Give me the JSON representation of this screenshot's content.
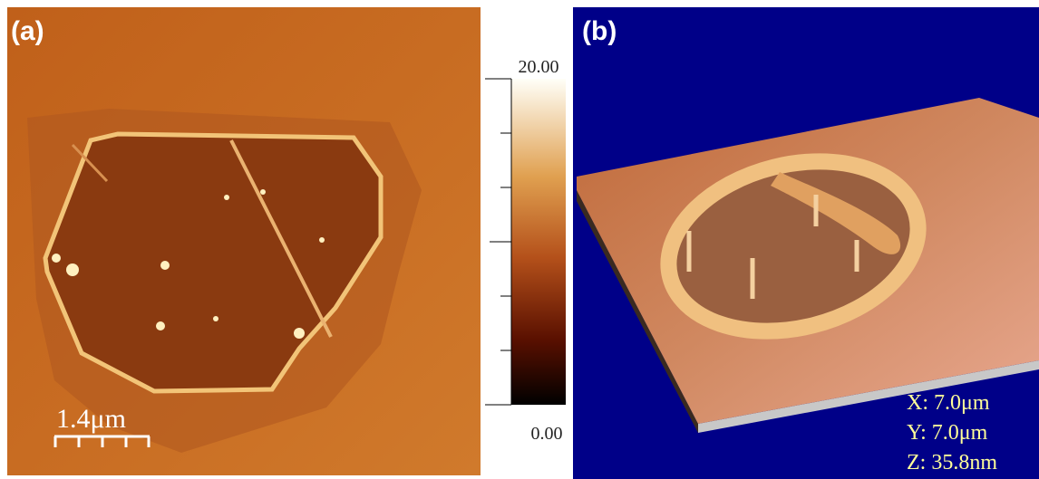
{
  "panel_a": {
    "label": "(a)",
    "scale_bar": "1.4μm",
    "colorbar": {
      "max_label": "20.00",
      "min_label": "0.00"
    }
  },
  "panel_b": {
    "label": "(b)",
    "dimensions": [
      "X: 7.0μm",
      "Y: 7.0μm",
      "Z: 35.8nm"
    ]
  }
}
